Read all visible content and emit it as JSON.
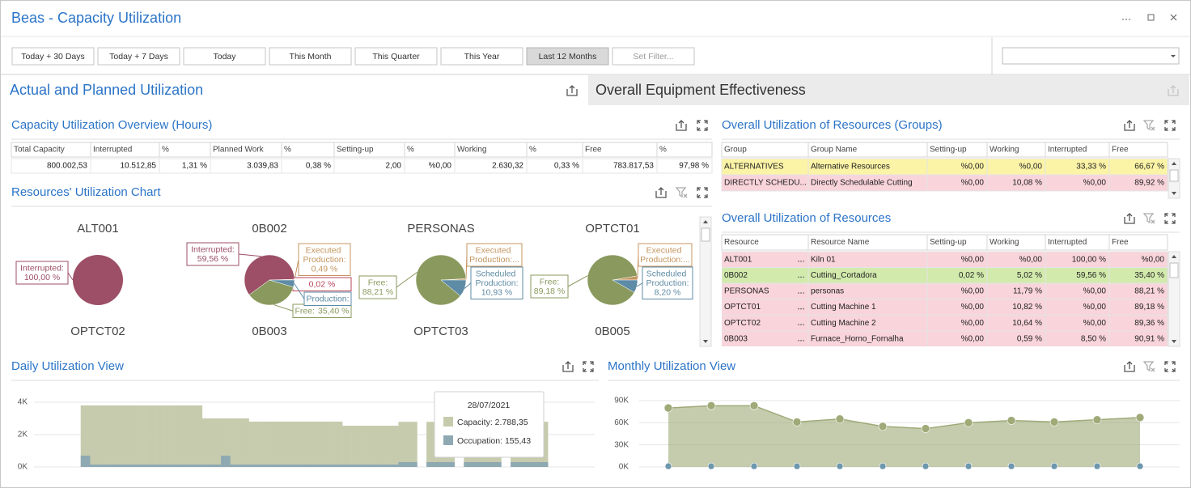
{
  "window": {
    "title": "Beas - Capacity Utilization"
  },
  "toolbar": {
    "buttons": [
      "Today + 30 Days",
      "Today + 7 Days",
      "Today",
      "This Month",
      "This Quarter",
      "This Year",
      "Last 12 Months",
      "Set Filter..."
    ],
    "active": 6,
    "disabled": 7
  },
  "tabs": [
    "Actual and Planned Utilization",
    "Overall Equipment Effectiveness"
  ],
  "active_tab": 0,
  "overview": {
    "title": "Capacity Utilization Overview (Hours)",
    "columns": [
      "Total Capacity",
      "Interrupted",
      "%",
      "Planned Work",
      "%",
      "Setting-up",
      "%",
      "Working",
      "%",
      "Free",
      "%"
    ],
    "row": [
      "800.002,53",
      "10.512,85",
      "1,31 %",
      "3.039,83",
      "0,38 %",
      "2,00",
      "%0,00",
      "2.630,32",
      "0,33 %",
      "783.817,53",
      "97,98 %"
    ]
  },
  "pie_panel": {
    "title": "Resources' Utilization Chart",
    "next_row": [
      "OPTCT02",
      "0B003",
      "OPTCT03",
      "0B005"
    ]
  },
  "groups": {
    "title": "Overall Utilization of Resources (Groups)",
    "columns": [
      "Group",
      "Group Name",
      "Setting-up",
      "Working",
      "Interrupted",
      "Free"
    ],
    "rows": [
      {
        "cells": [
          "ALTERNATIVES",
          "Alternative Resources",
          "%0,00",
          "%0,00",
          "33,33 %",
          "66,67 %"
        ],
        "color": "#fbf3a6"
      },
      {
        "cells": [
          "DIRECTLY SCHEDU...",
          "Directly Schedulable Cutting",
          "%0,00",
          "10,08 %",
          "%0,00",
          "89,92 %"
        ],
        "color": "#f9d4db"
      }
    ]
  },
  "resources": {
    "title": "Overall Utilization of Resources",
    "columns": [
      "Resource",
      "Resource Name",
      "Setting-up",
      "Working",
      "Interrupted",
      "Free"
    ],
    "rows": [
      {
        "cells": [
          "ALT001",
          "Kiln 01",
          "%0,00",
          "%0,00",
          "100,00 %",
          "%0,00"
        ],
        "color": "#f9d4db"
      },
      {
        "cells": [
          "0B002",
          "Cutting_Cortadora",
          "0,02 %",
          "5,02 %",
          "59,56 %",
          "35,40 %"
        ],
        "color": "#d2eaac"
      },
      {
        "cells": [
          "PERSONAS",
          "personas",
          "%0,00",
          "11,79 %",
          "%0,00",
          "88,21 %"
        ],
        "color": "#f9d4db"
      },
      {
        "cells": [
          "OPTCT01",
          "Cutting Machine 1",
          "%0,00",
          "10,82 %",
          "%0,00",
          "89,18 %"
        ],
        "color": "#f9d4db"
      },
      {
        "cells": [
          "OPTCT02",
          "Cutting Machine 2",
          "%0,00",
          "10,64 %",
          "%0,00",
          "89,36 %"
        ],
        "color": "#f9d4db"
      },
      {
        "cells": [
          "0B003",
          "Furnace_Horno_Fornalha",
          "%0,00",
          "0,59 %",
          "8,50 %",
          "90,91 %"
        ],
        "color": "#f9d4db"
      }
    ]
  },
  "chart_data": [
    {
      "type": "pie",
      "title": "ALT001",
      "categories": [
        "Interrupted:"
      ],
      "values": [
        100
      ],
      "value_labels": [
        "100,00 %"
      ],
      "colors": [
        "#9c4f66"
      ]
    },
    {
      "type": "pie",
      "title": "0B002",
      "categories": [
        "Executed Production:",
        null,
        "Interrupted:",
        "Free:",
        "Production:"
      ],
      "values": [
        0.49,
        0.02,
        59.56,
        35.4,
        4.53
      ],
      "value_labels": [
        "0,49 %",
        "0,02 %",
        "59,56 %",
        "35,40 %",
        null
      ],
      "colors": [
        "#c4955f",
        "#b8465a",
        "#9c4f66",
        "#8a9a5e",
        "#5e8ba5"
      ]
    },
    {
      "type": "pie",
      "title": "PERSONAS",
      "categories": [
        "Executed Production:...",
        "Free:",
        "Scheduled Production:"
      ],
      "values": [
        0.86,
        88.21,
        10.93
      ],
      "value_labels": [
        null,
        "88,21 %",
        "10,93 %"
      ],
      "colors": [
        "#c4955f",
        "#8a9a5e",
        "#5e8ba5"
      ]
    },
    {
      "type": "pie",
      "title": "OPTCT01",
      "categories": [
        "Executed Production:...",
        "Free:",
        "Scheduled Production:"
      ],
      "values": [
        2.62,
        89.18,
        8.2
      ],
      "value_labels": [
        null,
        "89,18 %",
        "8,20 %"
      ],
      "colors": [
        "#c4955f",
        "#8a9a5e",
        "#5e8ba5"
      ]
    },
    {
      "type": "bar",
      "title": "Daily Utilization View",
      "ylim": [
        0,
        4400
      ],
      "yticks": [
        {
          "value": 0,
          "label": "0K"
        },
        {
          "value": 2000,
          "label": "2K"
        },
        {
          "value": 4000,
          "label": "4K"
        }
      ],
      "grid": true,
      "series": [
        {
          "color": "#c6cbad",
          "values": [
            0,
            0,
            0,
            0,
            0,
            3800,
            3800,
            3800,
            3800,
            3800,
            3800,
            3800,
            3800,
            3800,
            3800,
            3800,
            3800,
            3800,
            3000,
            3000,
            3000,
            3000,
            3000,
            2800,
            2800,
            2800,
            2800,
            2800,
            2800,
            2800,
            2800,
            2800,
            2800,
            2550,
            2550,
            2550,
            2550,
            2550,
            2550,
            2790,
            2790,
            0,
            2790,
            2790,
            2790,
            0,
            2790,
            2790,
            2790,
            2790,
            0,
            2790,
            2790,
            2790,
            2790,
            0,
            0,
            0,
            0,
            0
          ]
        },
        {
          "color": "#8fa9b3",
          "values": [
            0,
            0,
            0,
            0,
            0,
            700,
            150,
            150,
            150,
            150,
            150,
            150,
            150,
            150,
            150,
            150,
            150,
            150,
            150,
            150,
            700,
            150,
            150,
            150,
            150,
            150,
            150,
            150,
            150,
            150,
            150,
            150,
            150,
            150,
            150,
            150,
            150,
            150,
            150,
            300,
            300,
            0,
            300,
            300,
            300,
            0,
            300,
            300,
            300,
            300,
            0,
            300,
            300,
            300,
            300,
            0,
            0,
            0,
            0,
            0
          ]
        }
      ],
      "tooltip": {
        "title": "28/07/2021",
        "lines": [
          "Capacity: 2.788,35",
          "Occupation: 155,43"
        ]
      }
    },
    {
      "type": "area",
      "title": "Monthly Utilization View",
      "ylim": [
        0,
        96000
      ],
      "yticks": [
        {
          "value": 0,
          "label": "0K"
        },
        {
          "value": 30000,
          "label": "30K"
        },
        {
          "value": 60000,
          "label": "60K"
        },
        {
          "value": 90000,
          "label": "90K"
        }
      ],
      "grid": true,
      "series": [
        {
          "color": "#9faa78",
          "values": [
            80000,
            83000,
            83000,
            61000,
            65000,
            55000,
            52000,
            60000,
            63000,
            61000,
            64000,
            67000
          ]
        },
        {
          "color": "#6d97ad",
          "values": [
            1000,
            1000,
            1000,
            1000,
            1000,
            1000,
            1000,
            1000,
            1000,
            1000,
            1000,
            1000
          ]
        }
      ]
    }
  ]
}
